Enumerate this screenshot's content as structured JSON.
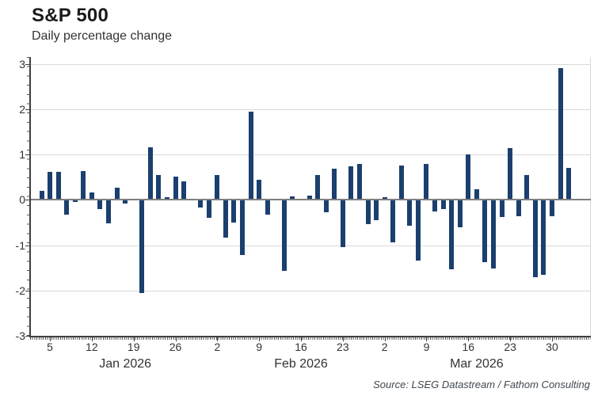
{
  "header": {
    "title": "S&P 500",
    "subtitle": "Daily percentage change"
  },
  "footer": {
    "source": "Source: LSEG Datastream / Fathom Consulting"
  },
  "chart_data": {
    "type": "bar",
    "title": "S&P 500",
    "subtitle": "Daily percentage change",
    "source": "Source: LSEG Datastream / Fathom Consulting",
    "xlabel": "",
    "ylabel": "",
    "ylim": [
      -3.0,
      3.15
    ],
    "yticks": [
      3,
      2,
      1,
      0,
      -1,
      -2,
      -3
    ],
    "grid": "horizontal-light-gray",
    "legend": "none",
    "bar_color": "#1b3f6e",
    "zero_line_color": "#7f7f7f",
    "categories": [
      "Jan 2",
      "Jan 5",
      "Jan 6",
      "Jan 7",
      "Jan 8",
      "Jan 9",
      "Jan 12",
      "Jan 13",
      "Jan 14",
      "Jan 15",
      "Jan 16",
      "Jan 19",
      "Jan 20",
      "Jan 21",
      "Jan 22",
      "Jan 23",
      "Jan 26",
      "Jan 27",
      "Jan 28",
      "Jan 29",
      "Jan 30",
      "Feb 2",
      "Feb 3",
      "Feb 4",
      "Feb 5",
      "Feb 6",
      "Feb 9",
      "Feb 10",
      "Feb 11",
      "Feb 12",
      "Feb 13",
      "Feb 16",
      "Feb 17",
      "Feb 18",
      "Feb 19",
      "Feb 20",
      "Feb 23",
      "Feb 24",
      "Feb 25",
      "Feb 26",
      "Feb 27",
      "Mar 2",
      "Mar 3",
      "Mar 4",
      "Mar 5",
      "Mar 6",
      "Mar 9",
      "Mar 10",
      "Mar 11",
      "Mar 12",
      "Mar 13",
      "Mar 16",
      "Mar 17",
      "Mar 18",
      "Mar 19",
      "Mar 20",
      "Mar 23",
      "Mar 24",
      "Mar 25",
      "Mar 26",
      "Mar 27",
      "Mar 30",
      "Mar 31",
      "Apr 1"
    ],
    "values": [
      0.2,
      0.62,
      0.61,
      -0.32,
      -0.04,
      0.64,
      0.16,
      -0.2,
      -0.52,
      0.27,
      -0.08,
      0.0,
      -2.05,
      1.15,
      0.54,
      0.06,
      0.52,
      0.4,
      0.02,
      -0.17,
      -0.4,
      0.54,
      -0.83,
      -0.5,
      -1.21,
      1.95,
      0.44,
      -0.33,
      0.01,
      -1.56,
      0.08,
      0.0,
      0.1,
      0.55,
      -0.27,
      0.69,
      -1.04,
      0.74,
      0.79,
      -0.54,
      -0.45,
      0.06,
      -0.94,
      0.75,
      -0.58,
      -1.34,
      0.8,
      -0.26,
      -0.2,
      -1.53,
      -0.6,
      1.0,
      0.23,
      -1.37,
      -1.52,
      -0.38,
      1.14,
      -0.36,
      0.54,
      -1.7,
      -1.65,
      -0.36,
      2.9,
      0.71
    ],
    "xticks": [
      {
        "slot": 1,
        "label": "5"
      },
      {
        "slot": 6,
        "label": "12"
      },
      {
        "slot": 11,
        "label": "19"
      },
      {
        "slot": 16,
        "label": "26"
      },
      {
        "slot": 21,
        "label": "2"
      },
      {
        "slot": 26,
        "label": "9"
      },
      {
        "slot": 31,
        "label": "16"
      },
      {
        "slot": 36,
        "label": "23"
      },
      {
        "slot": 41,
        "label": "2"
      },
      {
        "slot": 46,
        "label": "9"
      },
      {
        "slot": 51,
        "label": "16"
      },
      {
        "slot": 56,
        "label": "23"
      },
      {
        "slot": 61,
        "label": "30"
      }
    ],
    "month_labels": [
      {
        "label": "Jan 2026",
        "slot": 10
      },
      {
        "label": "Feb 2026",
        "slot": 31
      },
      {
        "label": "Mar 2026",
        "slot": 52
      }
    ]
  }
}
